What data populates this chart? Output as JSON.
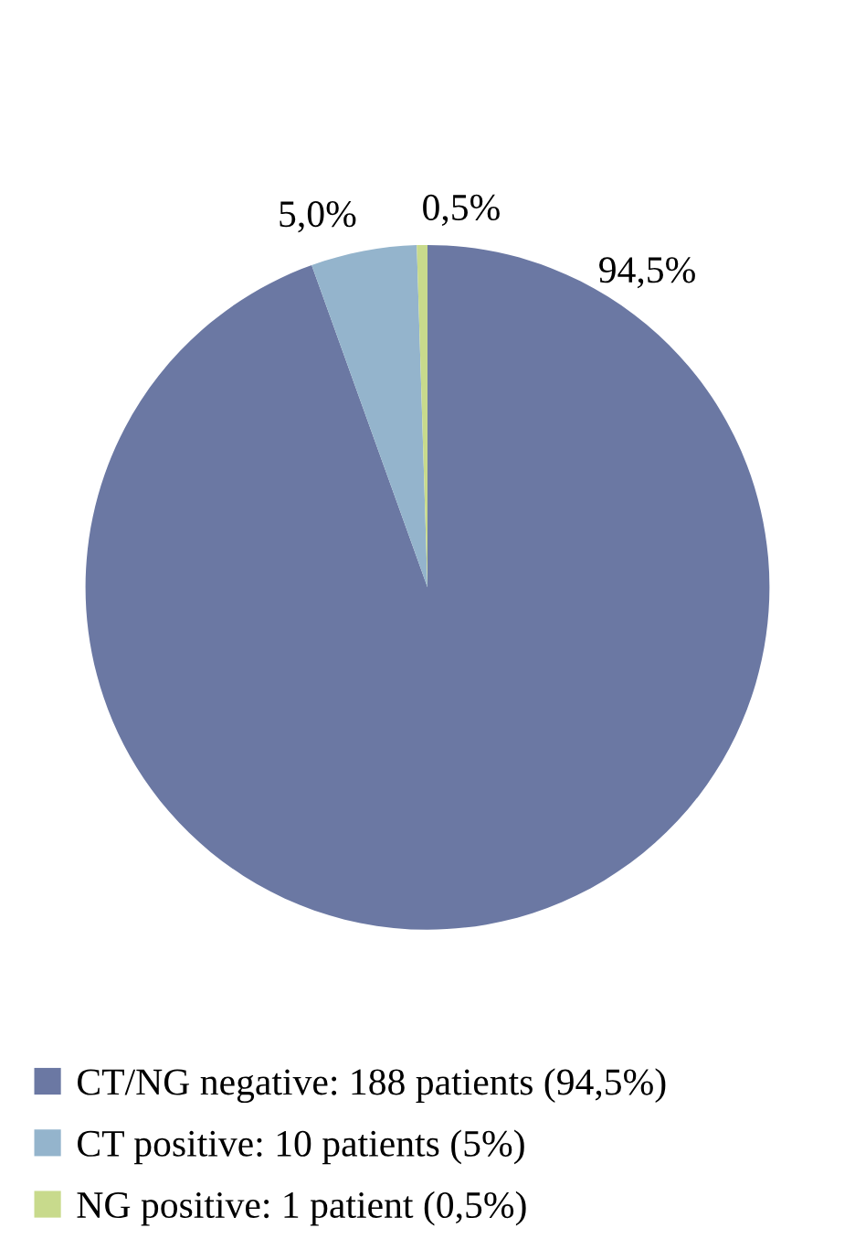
{
  "chart_data": {
    "type": "pie",
    "categories": [
      "CT/NG negative: 188 patients (94,5%)",
      "CT positive: 10 patients (5%)",
      "NG positive: 1 patient (0,5%)"
    ],
    "values": [
      94.5,
      5.0,
      0.5
    ],
    "value_labels": [
      "94,5%",
      "5,0%",
      "0,5%"
    ],
    "colors": [
      "#6b78a3",
      "#94b4cc",
      "#c8da8c"
    ],
    "legend": "bottom"
  }
}
